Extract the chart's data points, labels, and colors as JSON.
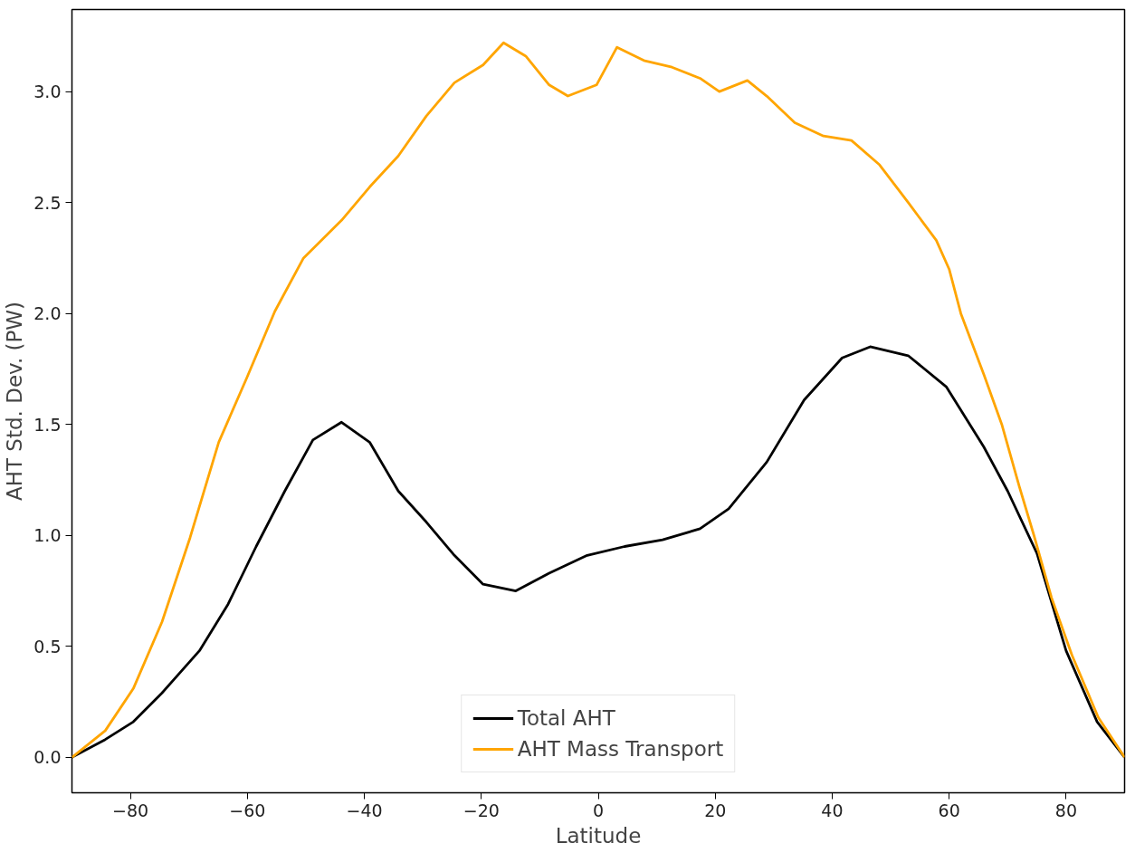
{
  "chart_data": {
    "type": "line",
    "xlabel": "Latitude",
    "ylabel": "AHT Std. Dev. (PW)",
    "xlim": [
      -90,
      90
    ],
    "ylim": [
      -0.16,
      3.37
    ],
    "xticks": [
      {
        "value": -80,
        "label": "−80"
      },
      {
        "value": -60,
        "label": "−60"
      },
      {
        "value": -40,
        "label": "−40"
      },
      {
        "value": -20,
        "label": "−20"
      },
      0,
      20,
      40,
      60,
      80
    ],
    "yticks": [
      {
        "value": 0,
        "label": "0.0"
      },
      0.5,
      {
        "value": 1,
        "label": "1.0"
      },
      1.5,
      {
        "value": 2,
        "label": "2.0"
      },
      2.5,
      {
        "value": 3,
        "label": "3.0"
      }
    ],
    "grid": false,
    "legend": "bottom",
    "marker": "none",
    "line_style": "solid",
    "series": [
      {
        "name": "Total AHT",
        "color": "#000000",
        "x": [
          -90,
          -84.3,
          -79.5,
          -74.6,
          -68.2,
          -63.3,
          -58.5,
          -53.6,
          -48.8,
          -43.9,
          -39.1,
          -34.2,
          -29.4,
          -24.6,
          -19.7,
          -14.1,
          -8.4,
          -1.9,
          4.5,
          11,
          17.4,
          22.3,
          28.8,
          35.2,
          41.7,
          46.5,
          53,
          59.5,
          65.9,
          70,
          75,
          80,
          85.3,
          90
        ],
        "values": [
          0,
          0.08,
          0.16,
          0.29,
          0.48,
          0.69,
          0.95,
          1.2,
          1.43,
          1.51,
          1.42,
          1.2,
          1.06,
          0.91,
          0.78,
          0.75,
          0.83,
          0.91,
          0.95,
          0.98,
          1.03,
          1.12,
          1.33,
          1.61,
          1.8,
          1.85,
          1.81,
          1.67,
          1.4,
          1.2,
          0.92,
          0.48,
          0.16,
          0
        ]
      },
      {
        "name": "AHT Mass Transport",
        "color": "#ffa500",
        "x": [
          -90,
          -84.3,
          -79.5,
          -74.6,
          -69.8,
          -64.9,
          -60.1,
          -55.3,
          -50.4,
          -43.9,
          -39.1,
          -34.2,
          -29.4,
          -24.6,
          -19.7,
          -16.2,
          -12.4,
          -8.4,
          -5.2,
          -0.3,
          3.2,
          7.8,
          12.6,
          17.4,
          20.7,
          25.5,
          28.8,
          33.6,
          38.5,
          43.3,
          48.1,
          53,
          57.8,
          60,
          62,
          66,
          69,
          72,
          74.5,
          77.5,
          81,
          85.5,
          90
        ],
        "values": [
          0,
          0.12,
          0.31,
          0.61,
          0.99,
          1.42,
          1.71,
          2.01,
          2.25,
          2.42,
          2.57,
          2.71,
          2.89,
          3.04,
          3.12,
          3.22,
          3.16,
          3.03,
          2.98,
          3.03,
          3.2,
          3.14,
          3.11,
          3.06,
          3,
          3.05,
          2.98,
          2.86,
          2.8,
          2.78,
          2.67,
          2.5,
          2.33,
          2.2,
          2.0,
          1.72,
          1.5,
          1.22,
          1.0,
          0.72,
          0.46,
          0.18,
          0
        ]
      }
    ]
  }
}
